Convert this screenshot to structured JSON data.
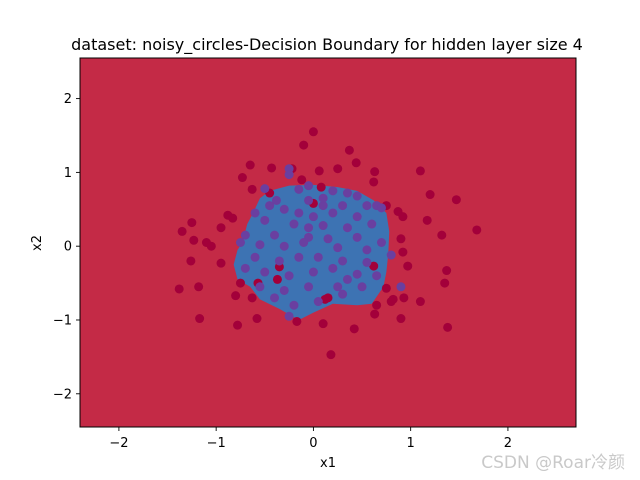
{
  "chart_data": {
    "type": "scatter",
    "title": "dataset: noisy_circles-Decision Boundary for hidden layer size 4",
    "xlabel": "x1",
    "ylabel": "x2",
    "xlim": [
      -2.4,
      2.7
    ],
    "ylim": [
      -2.45,
      2.55
    ],
    "xticks": [
      -2,
      -1,
      0,
      1,
      2
    ],
    "yticks": [
      -2,
      -1,
      0,
      1,
      2
    ],
    "xtick_labels": [
      "−2",
      "−1",
      "0",
      "1",
      "2"
    ],
    "ytick_labels": [
      "−2",
      "−1",
      "0",
      "1",
      "2"
    ],
    "grid": false,
    "legend": "none",
    "colors": {
      "background_class": "#c42a46",
      "boundary_class": "#3d73b3",
      "outer_points": "#a3003a",
      "inner_points": "#6a3fa0"
    },
    "decision_region": {
      "label": "blue region (class 1)",
      "boundary_polygon": [
        [
          -0.82,
          -0.25
        ],
        [
          -0.78,
          -0.05
        ],
        [
          -0.73,
          0.05
        ],
        [
          -0.68,
          0.3
        ],
        [
          -0.62,
          0.45
        ],
        [
          -0.55,
          0.65
        ],
        [
          -0.45,
          0.75
        ],
        [
          -0.25,
          0.82
        ],
        [
          0.0,
          0.83
        ],
        [
          0.25,
          0.8
        ],
        [
          0.45,
          0.75
        ],
        [
          0.62,
          0.62
        ],
        [
          0.75,
          0.45
        ],
        [
          0.78,
          0.2
        ],
        [
          0.77,
          -0.1
        ],
        [
          0.75,
          -0.35
        ],
        [
          0.72,
          -0.55
        ],
        [
          0.6,
          -0.78
        ],
        [
          0.45,
          -0.8
        ],
        [
          0.2,
          -0.78
        ],
        [
          0.0,
          -0.9
        ],
        [
          -0.15,
          -1.0
        ],
        [
          -0.35,
          -0.85
        ],
        [
          -0.55,
          -0.72
        ],
        [
          -0.65,
          -0.55
        ],
        [
          -0.78,
          -0.45
        ]
      ]
    },
    "series": [
      {
        "name": "",
        "color": "#a3003a",
        "points": [
          [
            0.0,
            1.55
          ],
          [
            -0.1,
            1.37
          ],
          [
            0.37,
            1.3
          ],
          [
            0.44,
            1.13
          ],
          [
            -0.65,
            1.1
          ],
          [
            -0.43,
            1.06
          ],
          [
            -0.22,
            1.05
          ],
          [
            0.06,
            1.02
          ],
          [
            0.25,
            1.05
          ],
          [
            0.63,
            1.01
          ],
          [
            1.1,
            1.02
          ],
          [
            -0.73,
            0.93
          ],
          [
            -0.12,
            0.9
          ],
          [
            0.62,
            0.87
          ],
          [
            1.2,
            0.7
          ],
          [
            -0.45,
            0.72
          ],
          [
            -0.63,
            0.77
          ],
          [
            0.08,
            0.8
          ],
          [
            1.47,
            0.63
          ],
          [
            0.75,
            0.55
          ],
          [
            0.87,
            0.47
          ],
          [
            -0.88,
            0.42
          ],
          [
            -0.83,
            0.38
          ],
          [
            1.17,
            0.35
          ],
          [
            -1.25,
            0.32
          ],
          [
            0.92,
            0.4
          ],
          [
            -1.23,
            0.08
          ],
          [
            -1.1,
            0.05
          ],
          [
            -1.35,
            0.2
          ],
          [
            -1.05,
            0.0
          ],
          [
            0.9,
            0.1
          ],
          [
            1.32,
            0.15
          ],
          [
            1.68,
            0.22
          ],
          [
            0.92,
            -0.08
          ],
          [
            -0.95,
            -0.23
          ],
          [
            -1.26,
            -0.2
          ],
          [
            0.97,
            -0.27
          ],
          [
            1.37,
            -0.33
          ],
          [
            1.35,
            -0.5
          ],
          [
            -1.38,
            -0.58
          ],
          [
            -1.18,
            -0.55
          ],
          [
            -0.75,
            -0.5
          ],
          [
            -0.8,
            -0.67
          ],
          [
            -0.57,
            -0.5
          ],
          [
            1.1,
            -0.75
          ],
          [
            -0.63,
            -0.7
          ],
          [
            0.63,
            -0.92
          ],
          [
            0.82,
            -0.72
          ],
          [
            0.93,
            -0.7
          ],
          [
            0.8,
            -0.75
          ],
          [
            0.9,
            -0.98
          ],
          [
            0.15,
            -0.7
          ],
          [
            0.42,
            -1.12
          ],
          [
            1.38,
            -1.1
          ],
          [
            -0.78,
            -1.07
          ],
          [
            -0.58,
            -0.98
          ],
          [
            -0.17,
            -1.02
          ],
          [
            0.1,
            -1.05
          ],
          [
            -1.17,
            -0.98
          ],
          [
            0.18,
            -1.47
          ],
          [
            0.12,
            -0.72
          ],
          [
            -0.37,
            -0.45
          ],
          [
            -0.35,
            -0.28
          ],
          [
            0.62,
            -0.27
          ],
          [
            0.65,
            -0.8
          ],
          [
            0.0,
            0.58
          ],
          [
            0.75,
            -0.57
          ],
          [
            -0.95,
            0.25
          ]
        ]
      },
      {
        "name": "",
        "color": "#6a3fa0",
        "points": [
          [
            -0.25,
            1.05
          ],
          [
            -0.25,
            0.97
          ],
          [
            -0.15,
            0.77
          ],
          [
            -0.05,
            0.82
          ],
          [
            0.2,
            0.75
          ],
          [
            0.35,
            0.72
          ],
          [
            -0.5,
            0.78
          ],
          [
            0.45,
            0.68
          ],
          [
            -0.38,
            0.62
          ],
          [
            -0.05,
            0.62
          ],
          [
            0.1,
            0.55
          ],
          [
            0.3,
            0.55
          ],
          [
            0.55,
            0.55
          ],
          [
            0.65,
            0.55
          ],
          [
            0.7,
            0.52
          ],
          [
            -0.6,
            0.45
          ],
          [
            -0.3,
            0.5
          ],
          [
            -0.15,
            0.45
          ],
          [
            0.0,
            0.4
          ],
          [
            0.2,
            0.45
          ],
          [
            0.45,
            0.4
          ],
          [
            -0.5,
            0.35
          ],
          [
            -0.2,
            0.3
          ],
          [
            0.1,
            0.28
          ],
          [
            0.35,
            0.25
          ],
          [
            0.6,
            0.3
          ],
          [
            -0.7,
            0.15
          ],
          [
            -0.4,
            0.15
          ],
          [
            -0.05,
            0.12
          ],
          [
            0.15,
            0.1
          ],
          [
            0.45,
            0.12
          ],
          [
            0.7,
            0.05
          ],
          [
            -0.75,
            0.05
          ],
          [
            -0.55,
            0.02
          ],
          [
            -0.3,
            0.0
          ],
          [
            -0.1,
            0.05
          ],
          [
            0.25,
            -0.02
          ],
          [
            0.55,
            -0.05
          ],
          [
            0.8,
            -0.12
          ],
          [
            -0.6,
            -0.15
          ],
          [
            -0.35,
            -0.2
          ],
          [
            -0.15,
            -0.15
          ],
          [
            0.05,
            -0.15
          ],
          [
            0.3,
            -0.2
          ],
          [
            0.55,
            -0.22
          ],
          [
            -0.7,
            -0.3
          ],
          [
            -0.5,
            -0.35
          ],
          [
            -0.25,
            -0.4
          ],
          [
            0.0,
            -0.35
          ],
          [
            0.2,
            -0.3
          ],
          [
            0.45,
            -0.38
          ],
          [
            0.65,
            -0.4
          ],
          [
            -0.55,
            -0.55
          ],
          [
            -0.3,
            -0.6
          ],
          [
            -0.05,
            -0.55
          ],
          [
            0.25,
            -0.55
          ],
          [
            0.5,
            -0.55
          ],
          [
            -0.4,
            -0.7
          ],
          [
            -0.2,
            -0.8
          ],
          [
            0.05,
            -0.75
          ],
          [
            0.3,
            -0.65
          ],
          [
            -0.25,
            -0.95
          ],
          [
            0.9,
            -0.55
          ],
          [
            -0.05,
            0.25
          ],
          [
            0.1,
            0.65
          ],
          [
            -0.45,
            0.55
          ],
          [
            0.35,
            -0.45
          ]
        ]
      }
    ]
  },
  "watermark": "CSDN @Roar冷颜"
}
